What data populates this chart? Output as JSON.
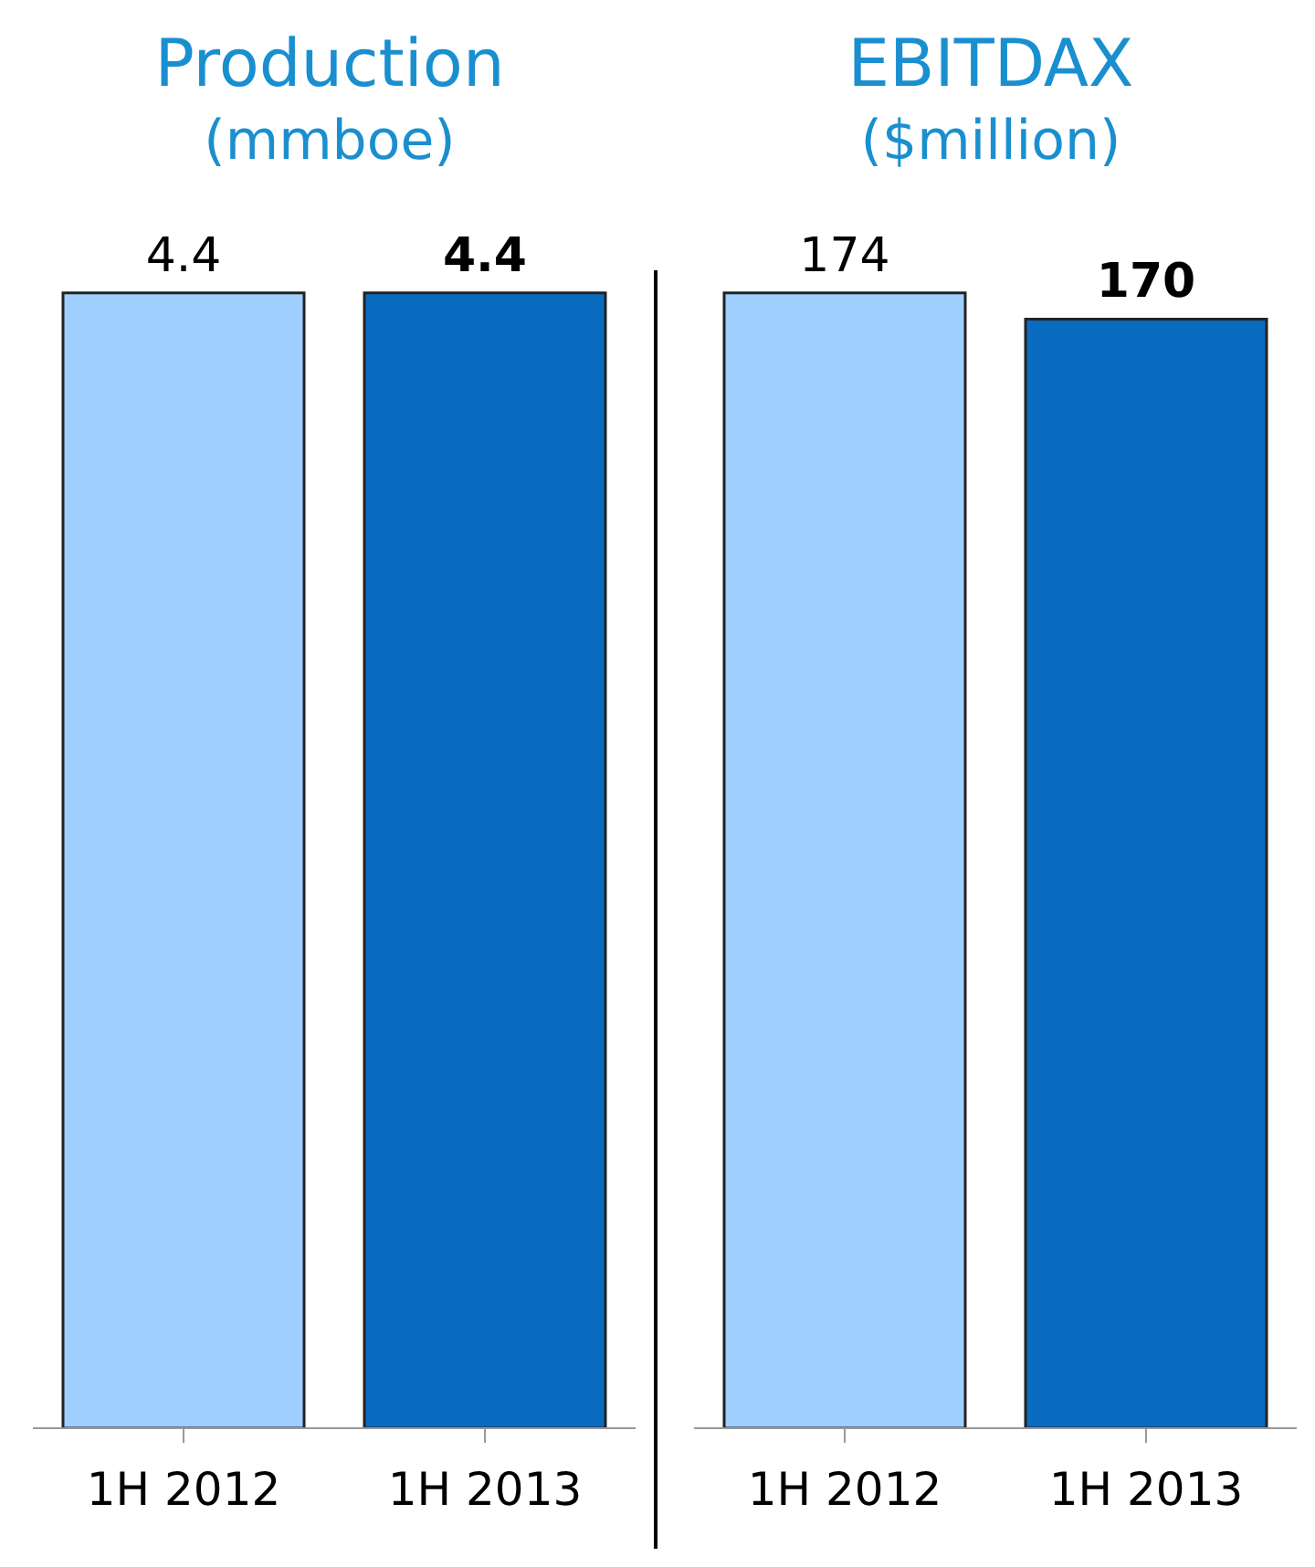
{
  "chart_data": [
    {
      "type": "bar",
      "title": "Production",
      "subtitle": "(mmboe)",
      "categories": [
        "1H 2012",
        "1H 2013"
      ],
      "values": [
        4.4,
        4.4
      ],
      "colors": [
        "#9fcfff",
        "#0a6cc0"
      ],
      "data_labels": true
    },
    {
      "type": "bar",
      "title": "EBITDAX",
      "subtitle": "($million)",
      "categories": [
        "1H 2012",
        "1H 2013"
      ],
      "values": [
        174,
        170
      ],
      "colors": [
        "#9fcfff",
        "#0a6cc0"
      ],
      "data_labels": true
    }
  ]
}
